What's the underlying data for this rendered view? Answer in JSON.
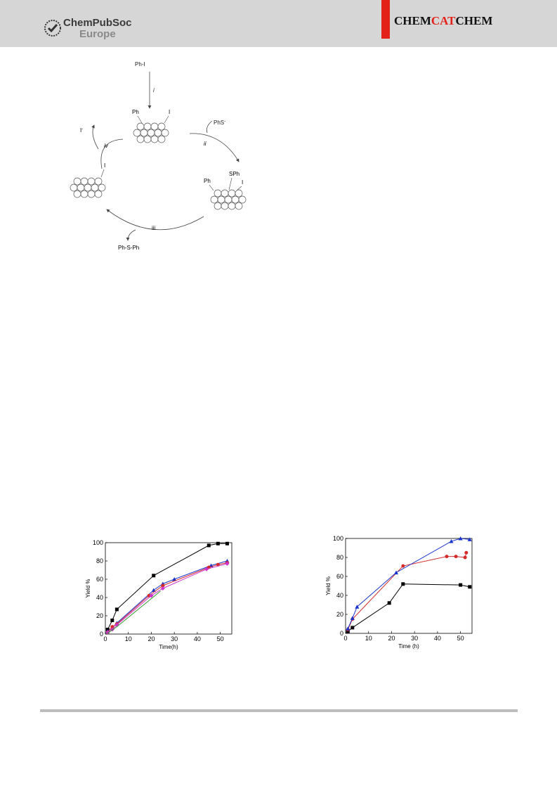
{
  "header": {
    "publisher_name": "ChemPubSoc",
    "publisher_sub": "Europe",
    "journal_parts": [
      {
        "text": "CHEM",
        "color": "#111111"
      },
      {
        "text": "CAT",
        "color": "#e32119"
      },
      {
        "text": "CHEM",
        "color": "#111111"
      }
    ]
  },
  "scheme": {
    "reagent_top": "Ph-I",
    "step_i": "i",
    "step_ii": "ii",
    "step_iii": "iii",
    "step_iv": "iv",
    "reagent_right": "PhS",
    "reagent_right_sup": "-",
    "product_left": "I",
    "product_left_sup": "-",
    "product_bottom": "Ph-S-Ph",
    "cluster_top_labels": [
      "Ph",
      "I"
    ],
    "cluster_right_labels": [
      "Ph",
      "SPh",
      "I"
    ],
    "cluster_left_labels": [
      "I"
    ]
  },
  "chart_data": [
    {
      "type": "line",
      "xlabel": "Time(h)",
      "ylabel": "Yield %",
      "xlim": [
        0,
        55
      ],
      "ylim": [
        0,
        100
      ],
      "xticks": [
        0,
        10,
        20,
        30,
        40,
        50
      ],
      "yticks": [
        0,
        20,
        40,
        60,
        80,
        100
      ],
      "series": [
        {
          "color": "#000000",
          "marker": "square",
          "points": [
            [
              1,
              5
            ],
            [
              3,
              15
            ],
            [
              5,
              27
            ],
            [
              21,
              64
            ],
            [
              45,
              97
            ],
            [
              49,
              99
            ],
            [
              53,
              99
            ]
          ]
        },
        {
          "color": "#1a33cc",
          "marker": "triangle",
          "points": [
            [
              1,
              3
            ],
            [
              3,
              7
            ],
            [
              5,
              12
            ],
            [
              21,
              48
            ],
            [
              25,
              55
            ],
            [
              30,
              60
            ],
            [
              46,
              75
            ],
            [
              53,
              80
            ]
          ]
        },
        {
          "color": "#d42a2a",
          "marker": "circle",
          "points": [
            [
              1,
              2
            ],
            [
              3,
              8
            ],
            [
              5,
              11
            ],
            [
              19,
              42
            ],
            [
              25,
              53
            ],
            [
              45,
              73
            ],
            [
              49,
              76
            ],
            [
              53,
              78
            ]
          ]
        },
        {
          "color": "#cc33cc",
          "marker": "diamond",
          "points": [
            [
              1,
              2
            ],
            [
              3,
              5
            ],
            [
              5,
              10
            ],
            [
              20,
              42
            ],
            [
              25,
              50
            ],
            [
              44,
              71
            ],
            [
              53,
              77
            ]
          ]
        },
        {
          "color": "#2f9a2f",
          "marker": "none",
          "points": [
            [
              1,
              1
            ],
            [
              5,
              8
            ],
            [
              24,
              47
            ]
          ]
        }
      ]
    },
    {
      "type": "line",
      "xlabel": "Time (h)",
      "ylabel": "Yield %",
      "xlim": [
        0,
        55
      ],
      "ylim": [
        0,
        100
      ],
      "xticks": [
        0,
        10,
        20,
        30,
        40,
        50
      ],
      "yticks": [
        0,
        20,
        40,
        60,
        80,
        100
      ],
      "series": [
        {
          "color": "#000000",
          "marker": "square",
          "points": [
            [
              1,
              2
            ],
            [
              3,
              6
            ],
            [
              19,
              32
            ],
            [
              25,
              52
            ],
            [
              50,
              51
            ],
            [
              54,
              49
            ]
          ]
        },
        {
          "color": "#d42a2a",
          "marker": "circle",
          "points": [
            [
              1,
              4
            ],
            [
              3,
              15
            ],
            [
              25,
              71
            ],
            [
              44,
              81
            ],
            [
              48,
              81
            ],
            [
              52,
              80
            ],
            [
              52.5,
              85
            ]
          ]
        },
        {
          "color": "#1a33cc",
          "marker": "triangle",
          "points": [
            [
              1,
              5
            ],
            [
              3,
              16
            ],
            [
              5,
              28
            ],
            [
              22,
              64
            ],
            [
              46,
              97
            ],
            [
              50,
              100
            ],
            [
              54,
              99
            ]
          ]
        }
      ]
    }
  ]
}
